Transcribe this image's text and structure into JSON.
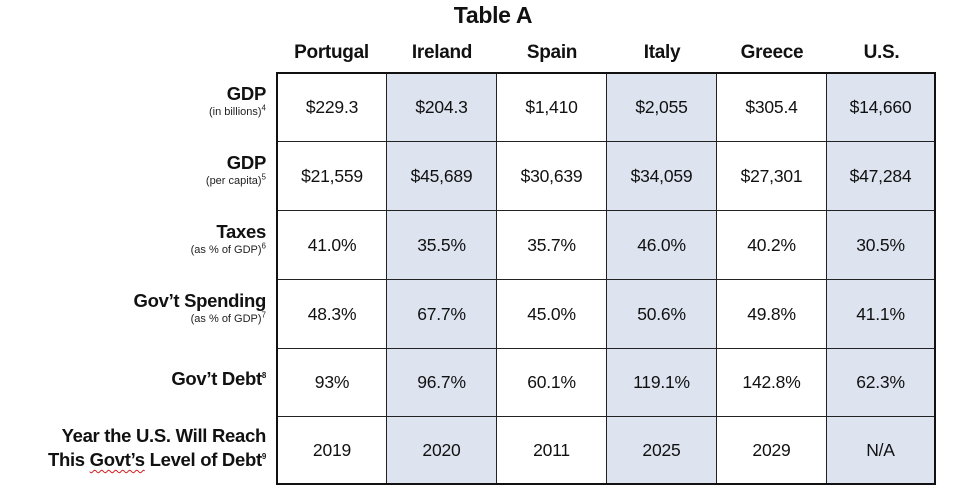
{
  "title": "Table A",
  "columns": [
    "Portugal",
    "Ireland",
    "Spain",
    "Italy",
    "Greece",
    "U.S."
  ],
  "rows": [
    {
      "label": "GDP",
      "sub": "(in billions)",
      "note": "4",
      "values": [
        "$229.3",
        "$204.3",
        "$1,410",
        "$2,055",
        "$305.4",
        "$14,660"
      ]
    },
    {
      "label": "GDP",
      "sub": "(per capita)",
      "note": "5",
      "values": [
        "$21,559",
        "$45,689",
        "$30,639",
        "$34,059",
        "$27,301",
        "$47,284"
      ]
    },
    {
      "label": "Taxes",
      "sub": "(as % of GDP)",
      "note": "6",
      "values": [
        "41.0%",
        "35.5%",
        "35.7%",
        "46.0%",
        "40.2%",
        "30.5%"
      ]
    },
    {
      "label": "Gov’t Spending",
      "sub": "(as % of GDP)",
      "note": "7",
      "values": [
        "48.3%",
        "67.7%",
        "45.0%",
        "50.6%",
        "49.8%",
        "41.1%"
      ]
    },
    {
      "label": "Gov’t Debt",
      "note": "8",
      "values": [
        "93%",
        "96.7%",
        "60.1%",
        "119.1%",
        "142.8%",
        "62.3%"
      ]
    },
    {
      "label_line1": "Year the U.S. Will Reach",
      "label_line2_pre": "This ",
      "label_line2_squiggle": "Govt’s",
      "label_line2_post": " Level of  Debt",
      "note": "9",
      "values": [
        "2019",
        "2020",
        "2011",
        "2025",
        "2029",
        "N/A"
      ]
    }
  ],
  "colors": {
    "shaded_cell": "#dde4f0",
    "border": "#111111",
    "spellcheck_underline": "#d21c1c"
  }
}
